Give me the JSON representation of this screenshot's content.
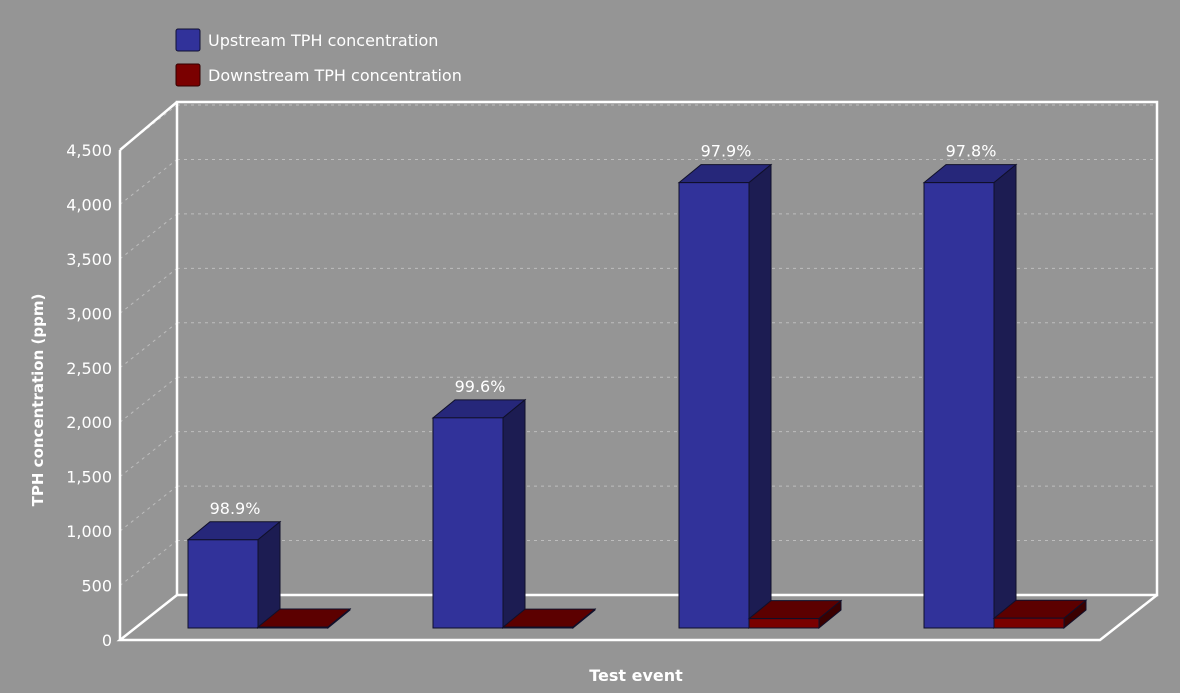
{
  "colors": {
    "background": "#959595",
    "frame": "#ffffff",
    "upstream_front": "#31329a",
    "upstream_side": "#1c1c52",
    "upstream_top": "#26277a",
    "downstream_front": "#7a0000",
    "downstream_side": "#3a0000",
    "downstream_top": "#5c0000",
    "text": "#ffffff",
    "grid": "#c8c8c8"
  },
  "chart_data": {
    "type": "bar",
    "title": "",
    "xlabel": "Test event",
    "ylabel": "TPH concentration (ppm)",
    "ylim": [
      0,
      4500
    ],
    "yticks": [
      "0",
      "500",
      "1,000",
      "1,500",
      "2,000",
      "2,500",
      "3,000",
      "3,500",
      "4,000",
      "4,500"
    ],
    "ytick_values": [
      0,
      500,
      1000,
      1500,
      2000,
      2500,
      3000,
      3500,
      4000,
      4500
    ],
    "categories": [
      "",
      "",
      "",
      ""
    ],
    "series": [
      {
        "name": "Upstream TPH concentration",
        "values": [
          810,
          1930,
          4090,
          4090
        ]
      },
      {
        "name": "Downstream TPH concentration",
        "values": [
          9,
          8,
          86,
          90
        ]
      }
    ],
    "data_labels": [
      "98.9%",
      "99.6%",
      "97.9%",
      "97.8%"
    ],
    "legend_position": "top-left",
    "grid": true
  }
}
